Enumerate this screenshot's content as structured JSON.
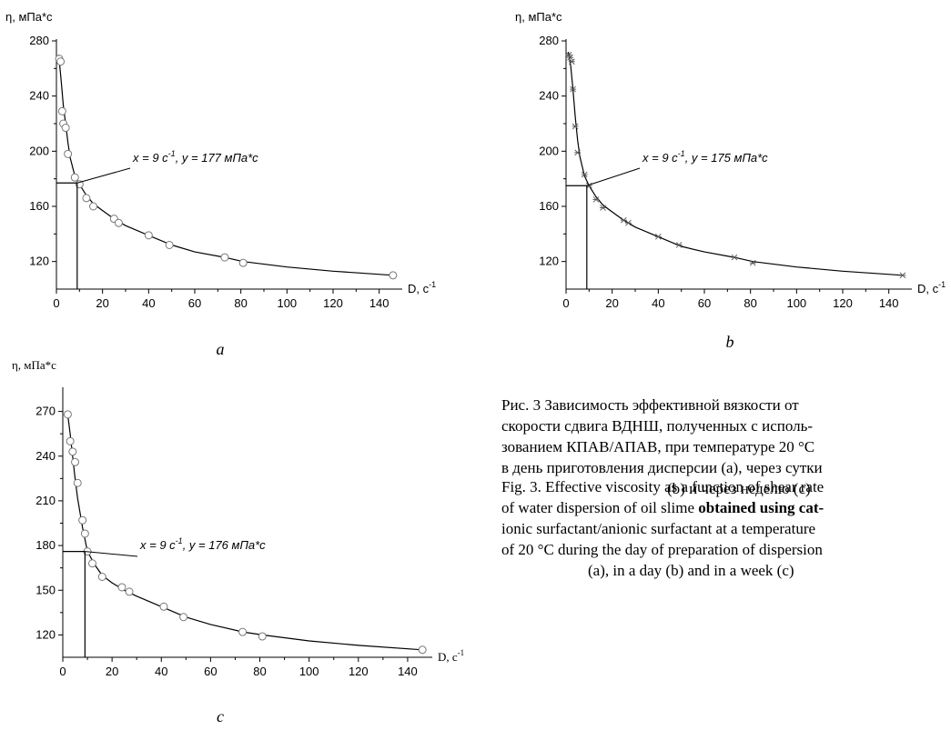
{
  "chart_data": [
    {
      "type": "scatter",
      "panel_label": "a",
      "ylabel": "η, мПа*с",
      "xlabel": "D, с",
      "xlabel_sup": "-1",
      "xlim": [
        0,
        150
      ],
      "ylim": [
        100,
        280
      ],
      "xticks": [
        0,
        20,
        40,
        60,
        80,
        100,
        120,
        140
      ],
      "yticks": [
        120,
        160,
        200,
        240,
        280
      ],
      "marker": "circle",
      "annotation": {
        "text": "x = 9 с",
        "sup": "-1",
        "text2": ", y = 177 мПа*с",
        "x": 9,
        "y": 177
      },
      "series": [
        {
          "x": [
            1.2,
            1.8,
            2.5,
            3.0,
            4.0,
            5.0,
            8.0,
            10.0,
            13.0,
            16.0,
            25.0,
            27.0,
            40.0,
            49.0,
            73.0,
            81.0,
            146.0
          ],
          "y": [
            267,
            265,
            229,
            220,
            217,
            198,
            181,
            176,
            166,
            160,
            151,
            148,
            139,
            132,
            123,
            119,
            110
          ]
        }
      ],
      "curve": {
        "x": [
          1,
          2,
          3,
          4,
          5,
          6,
          8,
          10,
          13,
          16,
          20,
          25,
          30,
          40,
          50,
          60,
          73,
          81,
          100,
          120,
          146
        ],
        "y": [
          270,
          252,
          233,
          220,
          206,
          195,
          182,
          176,
          168,
          162,
          157,
          151,
          146,
          139,
          132,
          127,
          123,
          120,
          116,
          113,
          110
        ]
      }
    },
    {
      "type": "scatter",
      "panel_label": "b",
      "ylabel": "η, мПа*с",
      "xlabel": "D, с",
      "xlabel_sup": "-1",
      "xlim": [
        0,
        150
      ],
      "ylim": [
        100,
        280
      ],
      "xticks": [
        0,
        20,
        40,
        60,
        80,
        100,
        120,
        140
      ],
      "yticks": [
        120,
        160,
        200,
        240,
        280
      ],
      "marker": "star",
      "annotation": {
        "text": "x = 9 с",
        "sup": "-1",
        "text2": ", y = 175 мПа*с",
        "x": 9,
        "y": 175
      },
      "series": [
        {
          "x": [
            1.2,
            1.8,
            2.5,
            3.0,
            4.0,
            5.0,
            8.0,
            10.0,
            13.0,
            16.0,
            25.0,
            27.0,
            40.0,
            49.0,
            73.0,
            81.0,
            146.0
          ],
          "y": [
            270,
            268,
            265,
            245,
            218,
            199,
            183,
            175,
            165,
            159,
            150,
            148,
            138,
            132,
            123,
            119,
            110
          ]
        }
      ],
      "curve": {
        "x": [
          1,
          2,
          3,
          4,
          5,
          6,
          8,
          10,
          13,
          16,
          20,
          25,
          30,
          40,
          50,
          60,
          73,
          81,
          100,
          120,
          146
        ],
        "y": [
          272,
          262,
          245,
          225,
          208,
          196,
          182,
          175,
          167,
          161,
          156,
          150,
          145,
          138,
          131,
          127,
          123,
          120,
          116,
          113,
          110
        ]
      }
    },
    {
      "type": "scatter",
      "panel_label": "c",
      "ylabel": "η, мПа*с",
      "xlabel": "D, с",
      "xlabel_sup": "-1",
      "xlim": [
        0,
        150
      ],
      "ylim": [
        105,
        285
      ],
      "xticks": [
        0,
        20,
        40,
        60,
        80,
        100,
        120,
        140
      ],
      "yticks": [
        120,
        150,
        180,
        210,
        240,
        270
      ],
      "marker": "circle",
      "annotation": {
        "text": "x = 9 с",
        "sup": "-1",
        "text2": ", y = 176 мПа*с",
        "x": 9,
        "y": 176
      },
      "series": [
        {
          "x": [
            2.0,
            3.0,
            4.0,
            5.0,
            6.0,
            8.0,
            9.0,
            10.0,
            12.0,
            16.0,
            24.0,
            27.0,
            41.0,
            49.0,
            73.0,
            81.0,
            146.0
          ],
          "y": [
            268,
            250,
            243,
            236,
            222,
            197,
            188,
            176,
            168,
            159,
            152,
            149,
            139,
            132,
            122,
            119,
            110
          ]
        }
      ],
      "curve": {
        "x": [
          2,
          3,
          4,
          5,
          6,
          8,
          10,
          13,
          16,
          20,
          25,
          30,
          40,
          50,
          60,
          73,
          81,
          100,
          120,
          146
        ],
        "y": [
          268,
          255,
          240,
          225,
          212,
          192,
          176,
          167,
          160,
          155,
          150,
          146,
          139,
          132,
          127,
          122,
          120,
          116,
          113,
          110
        ]
      }
    }
  ],
  "caption_ru": {
    "line1": "Рис. 3 Зависимость эффективной вязкости от",
    "line2": "скорости сдвига ВДНШ, полученных с исполь-",
    "line3": "зованием КПАВ/АПАВ, при температуре 20 °С",
    "line4": "в день приготовления дисперсии (a), через сутки",
    "line5": "(b) и через неделю (c)"
  },
  "caption_en": {
    "line1": "Fig. 3. Effective viscosity as a function of shear rate",
    "line2_pre": "of water dispersion of oil slime ",
    "line2_bold": "obtained using cat-",
    "line3": "ionic surfactant/anionic surfactant at a temperature",
    "line4": "of 20 °C during the day of preparation of dispersion",
    "line5": "(a), in a day (b) and in a week (c)"
  }
}
